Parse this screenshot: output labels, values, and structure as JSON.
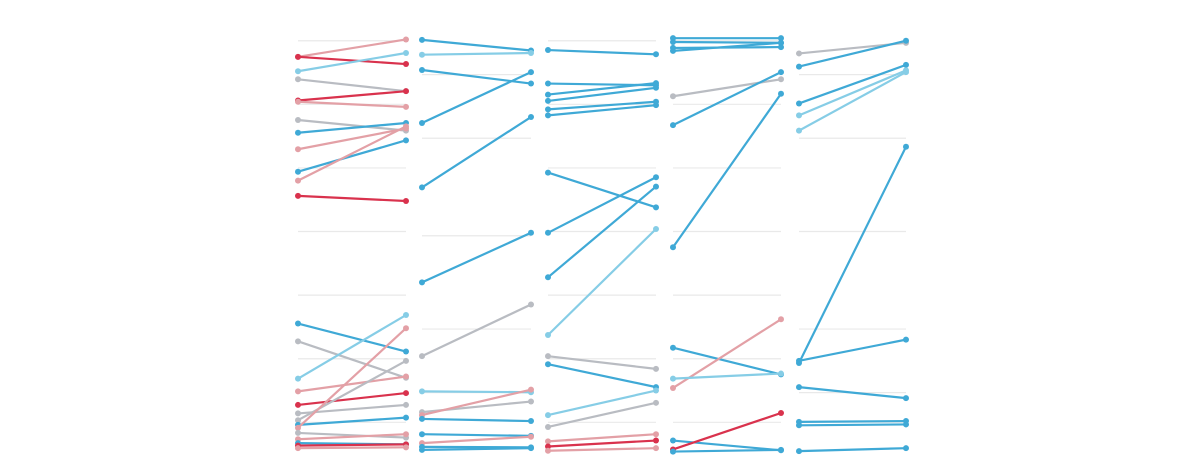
{
  "colors": {
    "blue": "#3fa9d6",
    "lightblue": "#86cde6",
    "red": "#d9324d",
    "pink": "#e3a0a6",
    "gray": "#b9bcc2",
    "grid": "#e9e9e9",
    "background": "#ffffff"
  },
  "chart_data": {
    "type": "slope",
    "grid": true,
    "legend": "none",
    "title": "",
    "ylim": [
      0,
      100
    ],
    "panels": [
      {
        "id": "panel-1",
        "gridlines": [
          97,
          82,
          67,
          52,
          37,
          22,
          7
        ],
        "series": [
          {
            "start": 93.2,
            "end": 97.3,
            "color": "pink"
          },
          {
            "start": 93.2,
            "end": 91.5,
            "color": "red"
          },
          {
            "start": 89.8,
            "end": 94.1,
            "color": "lightblue"
          },
          {
            "start": 87.9,
            "end": 85.1,
            "color": "gray"
          },
          {
            "start": 82.9,
            "end": 85.1,
            "color": "red"
          },
          {
            "start": 82.6,
            "end": 81.4,
            "color": "pink"
          },
          {
            "start": 78.3,
            "end": 75.8,
            "color": "gray"
          },
          {
            "start": 75.3,
            "end": 77.6,
            "color": "blue"
          },
          {
            "start": 71.4,
            "end": 76.3,
            "color": "pink"
          },
          {
            "start": 66.1,
            "end": 73.5,
            "color": "blue"
          },
          {
            "start": 64.0,
            "end": 76.8,
            "color": "pink"
          },
          {
            "start": 60.4,
            "end": 59.2,
            "color": "red"
          },
          {
            "start": 30.3,
            "end": 23.7,
            "color": "blue"
          },
          {
            "start": 26.1,
            "end": 17.5,
            "color": "gray"
          },
          {
            "start": 17.3,
            "end": 32.3,
            "color": "lightblue"
          },
          {
            "start": 14.3,
            "end": 17.8,
            "color": "pink"
          },
          {
            "start": 11.1,
            "end": 13.9,
            "color": "red"
          },
          {
            "start": 9.1,
            "end": 11.1,
            "color": "gray"
          },
          {
            "start": 7.5,
            "end": 21.5,
            "color": "gray"
          },
          {
            "start": 6.4,
            "end": 8.1,
            "color": "blue"
          },
          {
            "start": 5.7,
            "end": 29.2,
            "color": "pink"
          },
          {
            "start": 4.5,
            "end": 3.4,
            "color": "gray"
          },
          {
            "start": 3.0,
            "end": 4.2,
            "color": "pink"
          },
          {
            "start": 2.1,
            "end": 1.8,
            "color": "blue"
          },
          {
            "start": 1.5,
            "end": 1.8,
            "color": "red"
          },
          {
            "start": 0.9,
            "end": 1.1,
            "color": "pink"
          }
        ]
      },
      {
        "id": "panel-2",
        "gridlines": [
          89,
          74,
          51,
          29,
          14
        ],
        "series": [
          {
            "start": 97.2,
            "end": 94.7,
            "color": "blue"
          },
          {
            "start": 93.7,
            "end": 94.1,
            "color": "lightblue"
          },
          {
            "start": 90.1,
            "end": 86.9,
            "color": "blue"
          },
          {
            "start": 77.6,
            "end": 89.6,
            "color": "blue"
          },
          {
            "start": 62.4,
            "end": 79.0,
            "color": "blue"
          },
          {
            "start": 40.0,
            "end": 51.7,
            "color": "blue"
          },
          {
            "start": 22.6,
            "end": 34.8,
            "color": "gray"
          },
          {
            "start": 14.3,
            "end": 14.1,
            "color": "lightblue"
          },
          {
            "start": 9.4,
            "end": 11.9,
            "color": "gray"
          },
          {
            "start": 8.7,
            "end": 14.7,
            "color": "pink"
          },
          {
            "start": 7.8,
            "end": 7.3,
            "color": "blue"
          },
          {
            "start": 4.2,
            "end": 3.8,
            "color": "blue"
          },
          {
            "start": 2.1,
            "end": 3.6,
            "color": "pink"
          },
          {
            "start": 1.2,
            "end": 1.1,
            "color": "blue"
          },
          {
            "start": 0.5,
            "end": 0.9,
            "color": "blue"
          }
        ]
      },
      {
        "id": "panel-3",
        "gridlines": [
          97,
          82,
          67,
          52,
          37,
          22,
          7
        ],
        "series": [
          {
            "start": 94.8,
            "end": 93.8,
            "color": "blue"
          },
          {
            "start": 86.9,
            "end": 86.5,
            "color": "blue"
          },
          {
            "start": 84.3,
            "end": 87.0,
            "color": "blue"
          },
          {
            "start": 82.8,
            "end": 85.9,
            "color": "blue"
          },
          {
            "start": 80.8,
            "end": 82.6,
            "color": "blue"
          },
          {
            "start": 79.4,
            "end": 81.8,
            "color": "blue"
          },
          {
            "start": 65.9,
            "end": 57.7,
            "color": "blue"
          },
          {
            "start": 51.7,
            "end": 64.8,
            "color": "blue"
          },
          {
            "start": 41.2,
            "end": 62.6,
            "color": "blue"
          },
          {
            "start": 27.6,
            "end": 52.6,
            "color": "lightblue"
          },
          {
            "start": 22.6,
            "end": 19.6,
            "color": "gray"
          },
          {
            "start": 20.7,
            "end": 15.3,
            "color": "blue"
          },
          {
            "start": 8.7,
            "end": 14.5,
            "color": "lightblue"
          },
          {
            "start": 5.9,
            "end": 11.6,
            "color": "gray"
          },
          {
            "start": 2.5,
            "end": 4.2,
            "color": "pink"
          },
          {
            "start": 1.3,
            "end": 2.7,
            "color": "red"
          },
          {
            "start": 0.3,
            "end": 0.9,
            "color": "pink"
          }
        ]
      },
      {
        "id": "panel-4",
        "gridlines": [
          97,
          82,
          67,
          52,
          37,
          22,
          7
        ],
        "series": [
          {
            "start": 97.6,
            "end": 97.6,
            "color": "blue"
          },
          {
            "start": 96.7,
            "end": 96.5,
            "color": "blue"
          },
          {
            "start": 95.3,
            "end": 95.5,
            "color": "blue"
          },
          {
            "start": 94.6,
            "end": 96.5,
            "color": "blue"
          },
          {
            "start": 83.9,
            "end": 87.9,
            "color": "gray"
          },
          {
            "start": 77.1,
            "end": 89.6,
            "color": "blue"
          },
          {
            "start": 48.3,
            "end": 84.5,
            "color": "blue"
          },
          {
            "start": 24.6,
            "end": 18.3,
            "color": "blue"
          },
          {
            "start": 15.1,
            "end": 31.3,
            "color": "pink"
          },
          {
            "start": 17.3,
            "end": 18.5,
            "color": "lightblue"
          },
          {
            "start": 2.7,
            "end": 0.4,
            "color": "blue"
          },
          {
            "start": 0.6,
            "end": 9.2,
            "color": "red"
          },
          {
            "start": 0.1,
            "end": 0.5,
            "color": "blue"
          }
        ]
      },
      {
        "id": "panel-5",
        "gridlines": [
          89,
          74,
          52,
          29,
          14,
          7
        ],
        "series": [
          {
            "start": 94.0,
            "end": 96.5,
            "color": "gray"
          },
          {
            "start": 90.9,
            "end": 97.0,
            "color": "blue"
          },
          {
            "start": 82.2,
            "end": 91.3,
            "color": "blue"
          },
          {
            "start": 79.4,
            "end": 90.0,
            "color": "lightblue"
          },
          {
            "start": 75.8,
            "end": 89.6,
            "color": "lightblue"
          },
          {
            "start": 21.0,
            "end": 72.0,
            "color": "blue"
          },
          {
            "start": 21.5,
            "end": 26.5,
            "color": "blue"
          },
          {
            "start": 15.3,
            "end": 12.7,
            "color": "blue"
          },
          {
            "start": 7.1,
            "end": 7.3,
            "color": "blue"
          },
          {
            "start": 6.3,
            "end": 6.5,
            "color": "blue"
          },
          {
            "start": 0.2,
            "end": 0.9,
            "color": "blue"
          }
        ]
      }
    ]
  }
}
